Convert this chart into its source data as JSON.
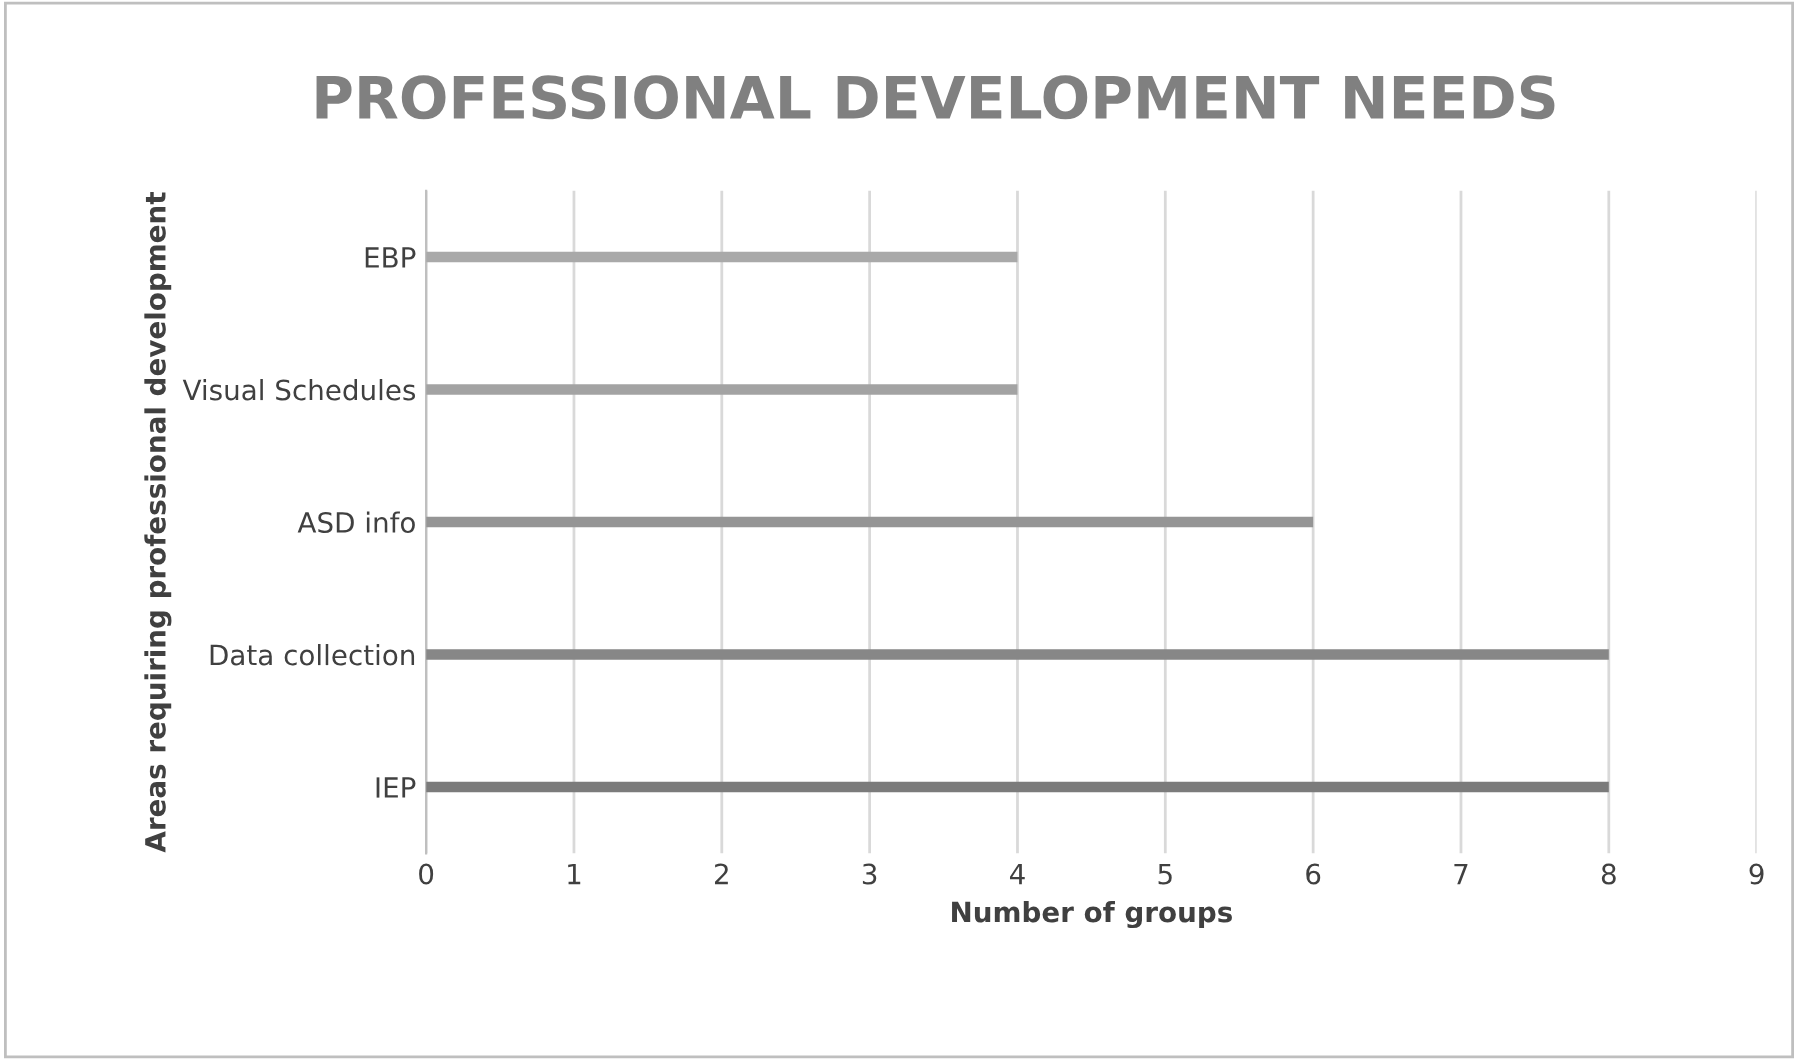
{
  "chart_data": {
    "type": "bar",
    "orientation": "horizontal",
    "title": "PROFESSIONAL DEVELOPMENT NEEDS",
    "xlabel": "Number of groups",
    "ylabel": "Areas requiring professional development",
    "categories": [
      "EBP",
      "Visual Schedules",
      "ASD info",
      "Data collection",
      "IEP"
    ],
    "values": [
      4,
      4,
      6,
      8,
      8
    ],
    "colors": [
      "#a9a9a9",
      "#a3a3a3",
      "#959595",
      "#878787",
      "#7b7b7b"
    ],
    "xlim": [
      0,
      9
    ],
    "xticks": [
      0,
      1,
      2,
      3,
      4,
      5,
      6,
      7,
      8,
      9
    ],
    "grid": "x"
  }
}
